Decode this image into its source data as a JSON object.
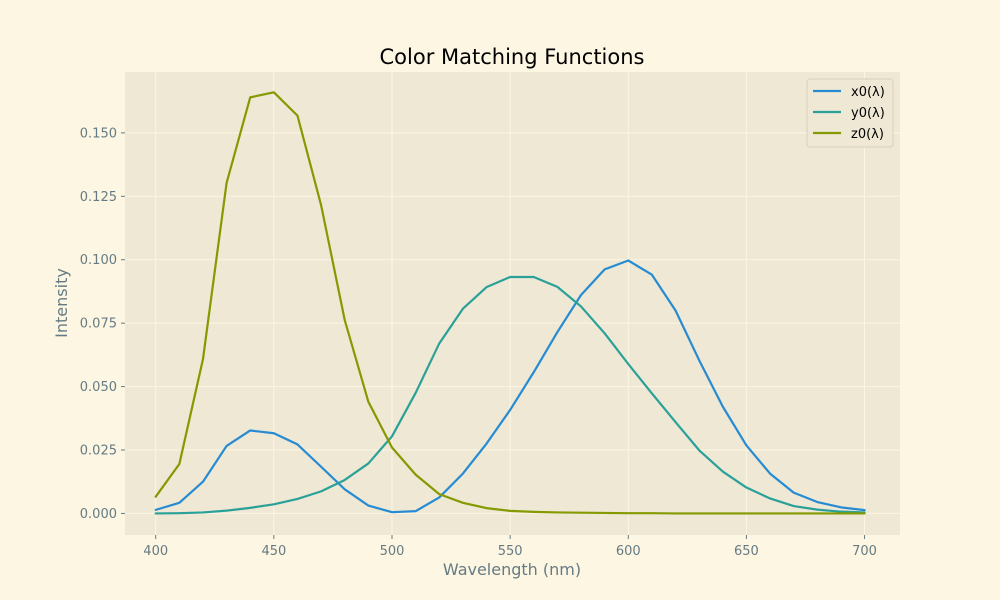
{
  "chart_data": {
    "type": "line",
    "title": "Color Matching Functions",
    "xlabel": "Wavelength (nm)",
    "ylabel": "Intensity",
    "xlim": [
      387,
      715
    ],
    "ylim": [
      -0.0085,
      0.174
    ],
    "xticks": [
      400,
      450,
      500,
      550,
      600,
      650,
      700
    ],
    "xtick_labels": [
      "400",
      "450",
      "500",
      "550",
      "600",
      "650",
      "700"
    ],
    "yticks": [
      0,
      0.025,
      0.05,
      0.075,
      0.1,
      0.125,
      0.15
    ],
    "ytick_labels": [
      "0.000",
      "0.025",
      "0.050",
      "0.075",
      "0.100",
      "0.125",
      "0.150"
    ],
    "grid": true,
    "legend_position": "top-right",
    "x": [
      400,
      410,
      420,
      430,
      440,
      450,
      460,
      470,
      480,
      490,
      500,
      510,
      520,
      530,
      540,
      550,
      560,
      570,
      580,
      590,
      600,
      610,
      620,
      630,
      640,
      650,
      660,
      670,
      680,
      690,
      700
    ],
    "series": [
      {
        "name": "x0(λ)",
        "color": "#268bd2",
        "values": [
          0.0014,
          0.0042,
          0.0125,
          0.0266,
          0.0327,
          0.0316,
          0.0272,
          0.0184,
          0.0095,
          0.0031,
          0.0005,
          0.0009,
          0.0063,
          0.0157,
          0.0275,
          0.0408,
          0.0557,
          0.0715,
          0.0861,
          0.0962,
          0.0997,
          0.0941,
          0.08,
          0.0604,
          0.0421,
          0.0268,
          0.0157,
          0.0082,
          0.0045,
          0.0024,
          0.0013
        ]
      },
      {
        "name": "y0(λ)",
        "color": "#2aa198",
        "values": [
          0.0,
          0.0001,
          0.0004,
          0.0011,
          0.0022,
          0.0036,
          0.0057,
          0.0087,
          0.0132,
          0.0197,
          0.0304,
          0.0475,
          0.067,
          0.0807,
          0.0892,
          0.0932,
          0.0932,
          0.0893,
          0.0816,
          0.071,
          0.0589,
          0.0473,
          0.036,
          0.0249,
          0.0165,
          0.0102,
          0.0059,
          0.0029,
          0.0015,
          0.0007,
          0.0004
        ]
      },
      {
        "name": "z0(λ)",
        "color": "#859900",
        "values": [
          0.0066,
          0.0195,
          0.0608,
          0.1303,
          0.164,
          0.166,
          0.1568,
          0.1215,
          0.0762,
          0.044,
          0.026,
          0.0153,
          0.0076,
          0.0042,
          0.0021,
          0.001,
          0.0006,
          0.0004,
          0.0003,
          0.0002,
          0.0001,
          0.0001,
          0.0,
          0.0,
          0.0,
          0.0,
          0.0,
          0.0,
          0.0,
          0.0,
          0.0
        ]
      }
    ]
  }
}
